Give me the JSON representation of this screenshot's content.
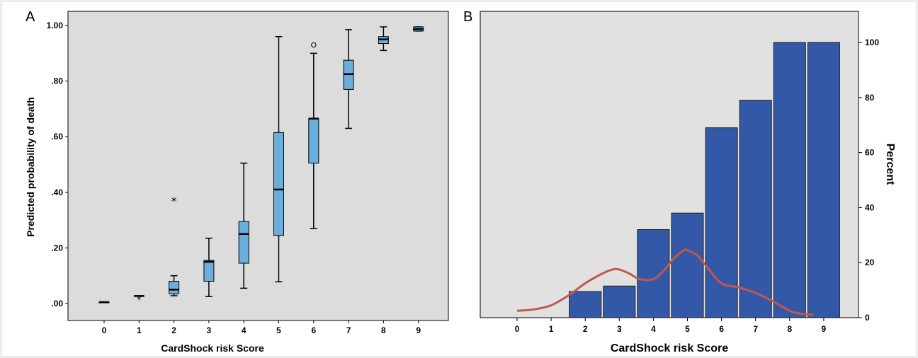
{
  "colors": {
    "page_bg": "#f2f2f2",
    "plot_bg_a": "#dcdcdc",
    "plot_bg_b": "#e1e1e1",
    "box_fill": "#6aaedb",
    "bar_fill": "#3458a8",
    "curve": "#c0584b"
  },
  "panels": {
    "a_label": "A",
    "b_label": "B"
  },
  "chart_data": [
    {
      "type": "box",
      "panel": "A",
      "xlabel": "CardShock risk Score",
      "ylabel": "Predicted probability of death",
      "categories": [
        "0",
        "1",
        "2",
        "3",
        "4",
        "5",
        "6",
        "7",
        "8",
        "9"
      ],
      "yticks": [
        ".00",
        ".20",
        ".40",
        ".60",
        ".80",
        "1.00"
      ],
      "ylim": [
        0,
        1.0
      ],
      "grid": false,
      "boxes": [
        {
          "x": "0",
          "min": 0.005,
          "q1": 0.005,
          "median": 0.005,
          "q3": 0.005,
          "max": 0.005
        },
        {
          "x": "1",
          "min": 0.026,
          "q1": 0.026,
          "median": 0.027,
          "q3": 0.028,
          "max": 0.028
        },
        {
          "x": "2",
          "min": 0.028,
          "q1": 0.035,
          "median": 0.05,
          "q3": 0.08,
          "max": 0.1
        },
        {
          "x": "3",
          "min": 0.025,
          "q1": 0.08,
          "median": 0.15,
          "q3": 0.155,
          "max": 0.235
        },
        {
          "x": "4",
          "min": 0.055,
          "q1": 0.145,
          "median": 0.25,
          "q3": 0.295,
          "max": 0.505
        },
        {
          "x": "5",
          "min": 0.078,
          "q1": 0.245,
          "median": 0.41,
          "q3": 0.615,
          "max": 0.96
        },
        {
          "x": "6",
          "min": 0.27,
          "q1": 0.505,
          "median": 0.665,
          "q3": 0.665,
          "max": 0.9
        },
        {
          "x": "7",
          "min": 0.63,
          "q1": 0.77,
          "median": 0.825,
          "q3": 0.875,
          "max": 0.985
        },
        {
          "x": "8",
          "min": 0.91,
          "q1": 0.935,
          "median": 0.95,
          "q3": 0.96,
          "max": 0.995
        },
        {
          "x": "9",
          "min": 0.98,
          "q1": 0.98,
          "median": 0.987,
          "q3": 0.995,
          "max": 0.995
        }
      ],
      "outliers": [
        {
          "x": "1",
          "y": 0.018,
          "marker": "triangle"
        },
        {
          "x": "2",
          "y": 0.37,
          "marker": "star"
        },
        {
          "x": "6",
          "y": 0.93,
          "marker": "circle"
        }
      ]
    },
    {
      "type": "bar",
      "panel": "B",
      "xlabel": "CardShock risk Score",
      "ylabel": "Percent",
      "categories": [
        "0",
        "1",
        "2",
        "3",
        "4",
        "5",
        "6",
        "7",
        "8",
        "9"
      ],
      "yticks": [
        "0",
        "20",
        "40",
        "60",
        "80",
        "100"
      ],
      "ylim": [
        0,
        111.5
      ],
      "y_axis_side": "right",
      "grid": false,
      "values": [
        null,
        null,
        9.5,
        11.5,
        32,
        38,
        69,
        79,
        100,
        100
      ],
      "curve": {
        "x": [
          0,
          0.5,
          1.0,
          1.5,
          2.0,
          2.5,
          2.8,
          3.0,
          3.3,
          3.6,
          4.0,
          4.3,
          4.6,
          4.9,
          5.0,
          5.3,
          5.6,
          6.0,
          6.5,
          7.0,
          7.5,
          8.0,
          8.3,
          8.7
        ],
        "y": [
          2.5,
          3.0,
          4.5,
          8.0,
          12.5,
          16.0,
          17.5,
          17.5,
          16.0,
          14.0,
          14.0,
          17.0,
          21.5,
          24.5,
          24.5,
          22.5,
          18.0,
          12.5,
          11.0,
          9.0,
          6.0,
          2.5,
          1.5,
          1.0
        ]
      }
    }
  ]
}
